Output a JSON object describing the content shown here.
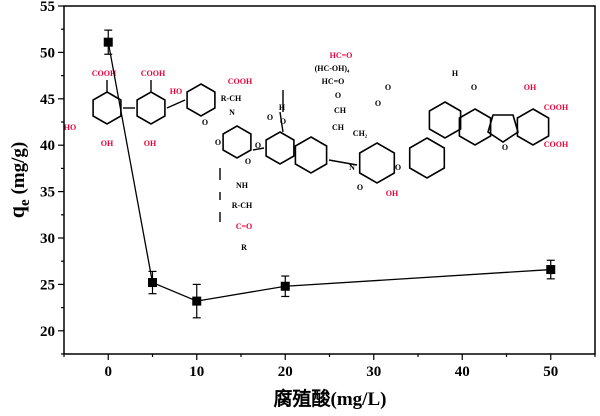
{
  "chart_data": {
    "type": "line",
    "title": "",
    "xlabel": "腐殖酸(mg/L)",
    "ylabel": "qe (mg/g)",
    "ylabel_main": "q",
    "ylabel_sub": "e",
    "ylabel_unit": " (mg/g)",
    "xlim": [
      -5,
      55
    ],
    "ylim": [
      17.5,
      55
    ],
    "xticks": [
      0,
      10,
      20,
      30,
      40,
      50
    ],
    "yticks": [
      20,
      25,
      30,
      35,
      40,
      45,
      50,
      55
    ],
    "grid": false,
    "legend": "none",
    "marker": "square",
    "colors": {
      "series": "#000000",
      "inset_accent": "#e8003a",
      "inset_bonds": "#000000"
    },
    "series": [
      {
        "x": [
          0,
          5,
          10,
          20,
          50
        ],
        "y": [
          51.1,
          25.2,
          23.2,
          24.8,
          26.6
        ],
        "error": [
          1.3,
          1.2,
          1.8,
          1.1,
          1.0
        ]
      }
    ],
    "inset_labels": [
      {
        "text": "COOH",
        "accent": true
      },
      {
        "text": "COOH",
        "accent": true
      },
      {
        "text": "HO",
        "accent": true
      },
      {
        "text": "OH",
        "accent": true
      },
      {
        "text": "OH",
        "accent": true
      },
      {
        "text": "HO",
        "accent": true
      },
      {
        "text": "COOH",
        "accent": true
      },
      {
        "text": "R-CH",
        "accent": false
      },
      {
        "text": "N",
        "accent": false
      },
      {
        "text": "O",
        "accent": false
      },
      {
        "text": "O",
        "accent": false
      },
      {
        "text": "O",
        "accent": false
      },
      {
        "text": "O",
        "accent": false
      },
      {
        "text": "H",
        "accent": false
      },
      {
        "text": "O",
        "accent": false
      },
      {
        "text": "O",
        "accent": false
      },
      {
        "text": "NH",
        "accent": false
      },
      {
        "text": "R-CH",
        "accent": false
      },
      {
        "text": "C=O",
        "accent": true
      },
      {
        "text": "R",
        "accent": false
      },
      {
        "text": "HC=O",
        "accent": true
      },
      {
        "text": "(HC-OH)₄",
        "accent": false
      },
      {
        "text": "HC=O",
        "accent": false
      },
      {
        "text": "O",
        "accent": false
      },
      {
        "text": "CH",
        "accent": false
      },
      {
        "text": "CH",
        "accent": false
      },
      {
        "text": "CH₂",
        "accent": false
      },
      {
        "text": "N",
        "accent": false
      },
      {
        "text": "O",
        "accent": false
      },
      {
        "text": "O",
        "accent": false
      },
      {
        "text": "OH",
        "accent": true
      },
      {
        "text": "O",
        "accent": false
      },
      {
        "text": "O",
        "accent": false
      },
      {
        "text": "H",
        "accent": false
      },
      {
        "text": "O",
        "accent": false
      },
      {
        "text": "O",
        "accent": false
      },
      {
        "text": "OH",
        "accent": true
      },
      {
        "text": "COOH",
        "accent": true
      },
      {
        "text": "COOH",
        "accent": true
      }
    ]
  }
}
